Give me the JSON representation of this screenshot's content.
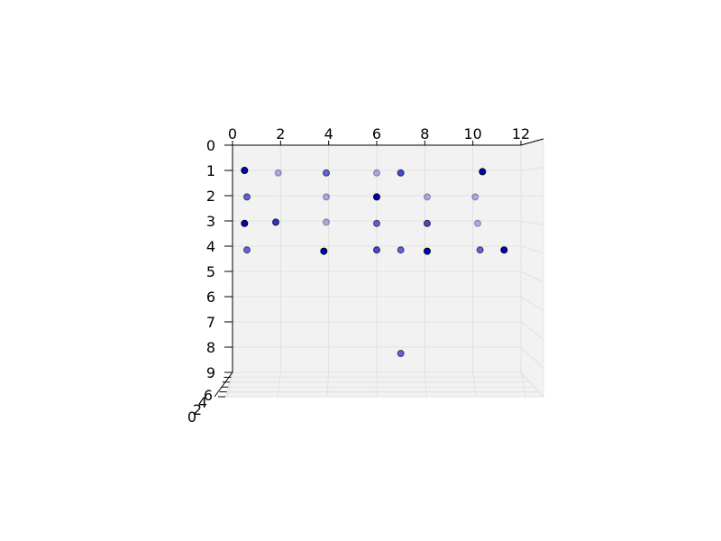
{
  "chart_data": {
    "type": "scatter",
    "title": "",
    "xlabel": "",
    "ylabel": "",
    "zlabel": "",
    "xlim": [
      0,
      12
    ],
    "ylim": [
      0,
      9
    ],
    "zlim": [
      0,
      9
    ],
    "x_ticks": [
      "0",
      "2",
      "4",
      "6",
      "8",
      "10",
      "12"
    ],
    "y_ticks": [
      "0",
      "1",
      "2",
      "3",
      "4",
      "5",
      "6",
      "7",
      "8",
      "9"
    ],
    "z_ticks": [
      "0",
      "2",
      "4",
      "6"
    ],
    "grid": true,
    "marker_color": "#0000cc",
    "marker_edge_color": "#000000",
    "points": [
      {
        "x": 0.5,
        "y": 1.0,
        "depth": 0.0
      },
      {
        "x": 1.9,
        "y": 1.1,
        "depth": 0.7
      },
      {
        "x": 3.9,
        "y": 1.1,
        "depth": 0.4
      },
      {
        "x": 6.0,
        "y": 1.1,
        "depth": 0.7
      },
      {
        "x": 7.0,
        "y": 1.1,
        "depth": 0.3
      },
      {
        "x": 10.4,
        "y": 1.05,
        "depth": 0.0
      },
      {
        "x": 0.6,
        "y": 2.05,
        "depth": 0.4
      },
      {
        "x": 3.9,
        "y": 2.05,
        "depth": 0.7
      },
      {
        "x": 6.0,
        "y": 2.05,
        "depth": 0.0
      },
      {
        "x": 8.1,
        "y": 2.05,
        "depth": 0.7
      },
      {
        "x": 10.1,
        "y": 2.05,
        "depth": 0.7
      },
      {
        "x": 0.5,
        "y": 3.1,
        "depth": 0.0
      },
      {
        "x": 1.8,
        "y": 3.05,
        "depth": 0.2
      },
      {
        "x": 3.9,
        "y": 3.05,
        "depth": 0.7
      },
      {
        "x": 6.0,
        "y": 3.1,
        "depth": 0.4
      },
      {
        "x": 8.1,
        "y": 3.1,
        "depth": 0.3
      },
      {
        "x": 10.2,
        "y": 3.1,
        "depth": 0.7
      },
      {
        "x": 0.6,
        "y": 4.15,
        "depth": 0.4
      },
      {
        "x": 3.8,
        "y": 4.2,
        "depth": 0.0
      },
      {
        "x": 6.0,
        "y": 4.15,
        "depth": 0.3
      },
      {
        "x": 7.0,
        "y": 4.15,
        "depth": 0.4
      },
      {
        "x": 8.1,
        "y": 4.2,
        "depth": 0.0
      },
      {
        "x": 10.3,
        "y": 4.15,
        "depth": 0.4
      },
      {
        "x": 11.3,
        "y": 4.15,
        "depth": 0.0
      },
      {
        "x": 7.0,
        "y": 8.25,
        "depth": 0.4
      }
    ]
  }
}
